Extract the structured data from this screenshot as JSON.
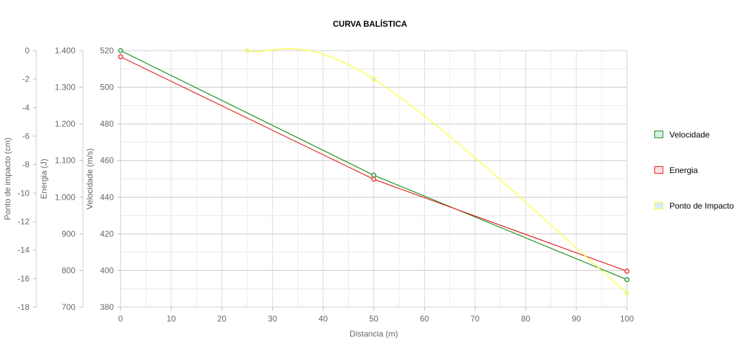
{
  "chart_data": {
    "type": "line",
    "title": "CURVA BALÍSTICA",
    "xlabel": "Distancia (m)",
    "x_ticks": [
      "0",
      "10",
      "20",
      "30",
      "40",
      "50",
      "60",
      "70",
      "80",
      "90",
      "100"
    ],
    "xlim": [
      0,
      100
    ],
    "axes": {
      "velocidade": {
        "label": "Velocidade (m/s)",
        "ylim": [
          380,
          520
        ],
        "ticks": [
          "520",
          "500",
          "480",
          "460",
          "440",
          "420",
          "400",
          "380"
        ]
      },
      "energia": {
        "label": "Energia (J)",
        "ylim": [
          700,
          1400
        ],
        "ticks": [
          "1.400",
          "1.300",
          "1.200",
          "1.100",
          "1.000",
          "900",
          "800",
          "700"
        ]
      },
      "impacto": {
        "label": "Ponto de impacto (cm)",
        "ylim": [
          -18,
          0
        ],
        "ticks": [
          "0",
          "-2",
          "-4",
          "-6",
          "-8",
          "-10",
          "-12",
          "-14",
          "-16",
          "-18"
        ]
      }
    },
    "series": [
      {
        "name": "Velocidade",
        "axis": "velocidade",
        "color": "#1a8c1a",
        "fill": "#d6f2e6",
        "smooth": false,
        "points": [
          [
            0,
            520
          ],
          [
            50,
            452
          ],
          [
            100,
            395
          ]
        ]
      },
      {
        "name": "Energia",
        "axis": "energia",
        "color": "#e02020",
        "fill": "#ffe0e0",
        "smooth": false,
        "points": [
          [
            0,
            1383
          ],
          [
            50,
            1049
          ],
          [
            100,
            798
          ]
        ]
      },
      {
        "name": "Ponto de Impacto",
        "axis": "impacto",
        "color": "#ffff33",
        "fill": "#d9ecf2",
        "smooth": true,
        "points": [
          [
            25,
            0
          ],
          [
            50,
            -2
          ],
          [
            100,
            -17
          ]
        ]
      }
    ],
    "legend_position": "right",
    "grid": true
  }
}
